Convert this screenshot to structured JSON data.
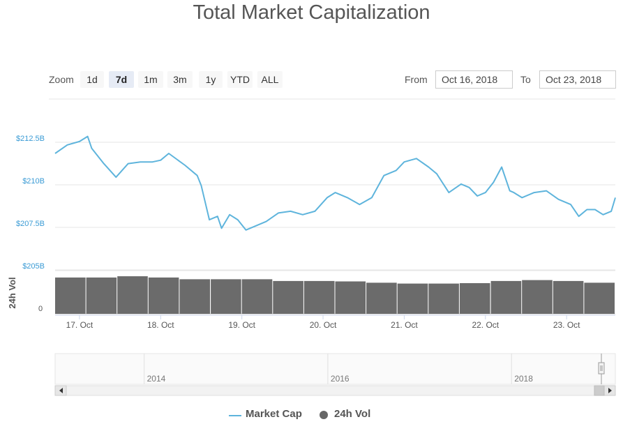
{
  "title": "Total Market Capitalization",
  "zoom": {
    "label": "Zoom",
    "buttons": [
      "1d",
      "7d",
      "1m",
      "3m",
      "1y",
      "YTD",
      "ALL"
    ],
    "active": "7d"
  },
  "range": {
    "from_label": "From",
    "from_value": "Oct 16, 2018",
    "to_label": "To",
    "to_value": "Oct 23, 2018"
  },
  "legend": {
    "market_cap": "Market Cap",
    "volume": "24h Vol"
  },
  "colors": {
    "line": "#5eb4dc",
    "volume": "#6b6b6b",
    "grid": "#e6e6e6",
    "axis_label": "#3a9bd5"
  },
  "chart_data": [
    {
      "type": "line",
      "name": "Market Cap",
      "ylabel": "",
      "y_ticks": [
        {
          "value": 212.5,
          "label": "$212.5B"
        },
        {
          "value": 210,
          "label": "$210B"
        },
        {
          "value": 207.5,
          "label": "$207.5B"
        },
        {
          "value": 205,
          "label": "$205B"
        }
      ],
      "ylim": [
        205,
        215
      ],
      "xlim": [
        16.7,
        23.6
      ],
      "x_ticks": [
        {
          "value": 17,
          "label": "17. Oct"
        },
        {
          "value": 18,
          "label": "18. Oct"
        },
        {
          "value": 19,
          "label": "19. Oct"
        },
        {
          "value": 20,
          "label": "20. Oct"
        },
        {
          "value": 21,
          "label": "21. Oct"
        },
        {
          "value": 22,
          "label": "22. Oct"
        },
        {
          "value": 23,
          "label": "23. Oct"
        }
      ],
      "x": [
        16.7,
        16.85,
        17.0,
        17.1,
        17.15,
        17.3,
        17.45,
        17.6,
        17.75,
        17.9,
        18.0,
        18.1,
        18.3,
        18.45,
        18.5,
        18.6,
        18.7,
        18.75,
        18.85,
        18.95,
        19.05,
        19.15,
        19.3,
        19.45,
        19.6,
        19.75,
        19.9,
        20.05,
        20.15,
        20.3,
        20.45,
        20.6,
        20.75,
        20.9,
        21.0,
        21.15,
        21.3,
        21.4,
        21.55,
        21.7,
        21.8,
        21.9,
        22.0,
        22.1,
        22.2,
        22.3,
        22.35,
        22.45,
        22.6,
        22.75,
        22.9,
        23.05,
        23.15,
        23.25,
        23.35,
        23.45,
        23.55,
        23.6
      ],
      "y": [
        211.6,
        212.1,
        212.3,
        212.6,
        211.9,
        211.0,
        210.2,
        211.0,
        211.1,
        211.1,
        211.2,
        211.6,
        210.9,
        210.3,
        209.7,
        207.7,
        207.9,
        207.2,
        208.0,
        207.7,
        207.1,
        207.3,
        207.6,
        208.1,
        208.2,
        208.0,
        208.2,
        209.0,
        209.3,
        209.0,
        208.6,
        209.0,
        210.3,
        210.6,
        211.1,
        211.3,
        210.8,
        210.4,
        209.3,
        209.8,
        209.6,
        209.1,
        209.3,
        209.9,
        210.8,
        209.4,
        209.3,
        209.0,
        209.3,
        209.4,
        208.9,
        208.6,
        207.9,
        208.3,
        208.3,
        208.0,
        208.2,
        209.0
      ]
    },
    {
      "type": "bar",
      "name": "24h Vol",
      "ylabel": "24h Vol",
      "y_ticks": [
        {
          "value": 0,
          "label": "0"
        }
      ],
      "ylim": [
        0,
        1
      ],
      "bar_x": [
        16.85,
        17.2,
        17.6,
        18.0,
        18.4,
        18.8,
        19.2,
        19.6,
        20.0,
        20.35,
        20.75,
        21.1,
        21.5,
        21.9,
        22.3,
        22.65,
        23.05,
        23.45
      ],
      "values": [
        0.84,
        0.84,
        0.87,
        0.84,
        0.8,
        0.8,
        0.8,
        0.76,
        0.76,
        0.75,
        0.72,
        0.7,
        0.7,
        0.71,
        0.76,
        0.78,
        0.76,
        0.72
      ]
    },
    {
      "type": "navigator",
      "year_labels": [
        {
          "value": 2014,
          "label": "2014"
        },
        {
          "value": 2016,
          "label": "2016"
        },
        {
          "value": 2018,
          "label": "2018"
        }
      ],
      "xlim": [
        2013.0,
        2019.1
      ]
    }
  ]
}
